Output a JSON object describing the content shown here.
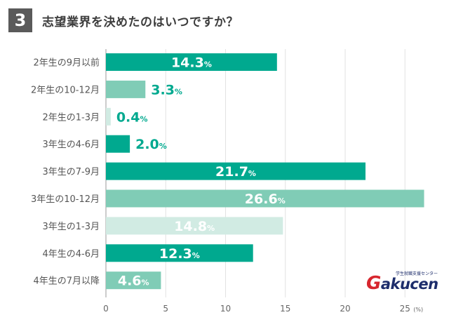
{
  "header": {
    "number": "3",
    "title": "志望業界を決めたのはいつですか？"
  },
  "logo": {
    "g": "G",
    "rest": "akucen",
    "sub": "学生就職支援センター"
  },
  "colors": {
    "dark": "#00a98f",
    "mid": "#80ccb6",
    "light": "#d1ebe3"
  },
  "chart_data": {
    "type": "bar",
    "orientation": "horizontal",
    "categories": [
      "2年生の9月以前",
      "2年生の10-12月",
      "2年生の1-3月",
      "3年生の4-6月",
      "3年生の7-9月",
      "3年生の10-12月",
      "3年生の1-3月",
      "4年生の4-6月",
      "4年生の7月以降"
    ],
    "values": [
      14.3,
      3.3,
      0.4,
      2.0,
      21.7,
      26.6,
      14.8,
      12.3,
      4.6
    ],
    "value_labels": [
      "14.3",
      "3.3",
      "0.4",
      "2.0",
      "21.7",
      "26.6",
      "14.8",
      "12.3",
      "4.6"
    ],
    "unit_suffix": "%",
    "bar_colors": [
      "dark",
      "mid",
      "light",
      "dark",
      "dark",
      "mid",
      "light",
      "dark",
      "mid"
    ],
    "label_inside": [
      true,
      false,
      false,
      false,
      true,
      true,
      true,
      true,
      true
    ],
    "xticks": [
      0,
      5,
      10,
      15,
      20,
      25
    ],
    "xlim": [
      0,
      28
    ],
    "xunit": "(%)",
    "grid": true
  }
}
